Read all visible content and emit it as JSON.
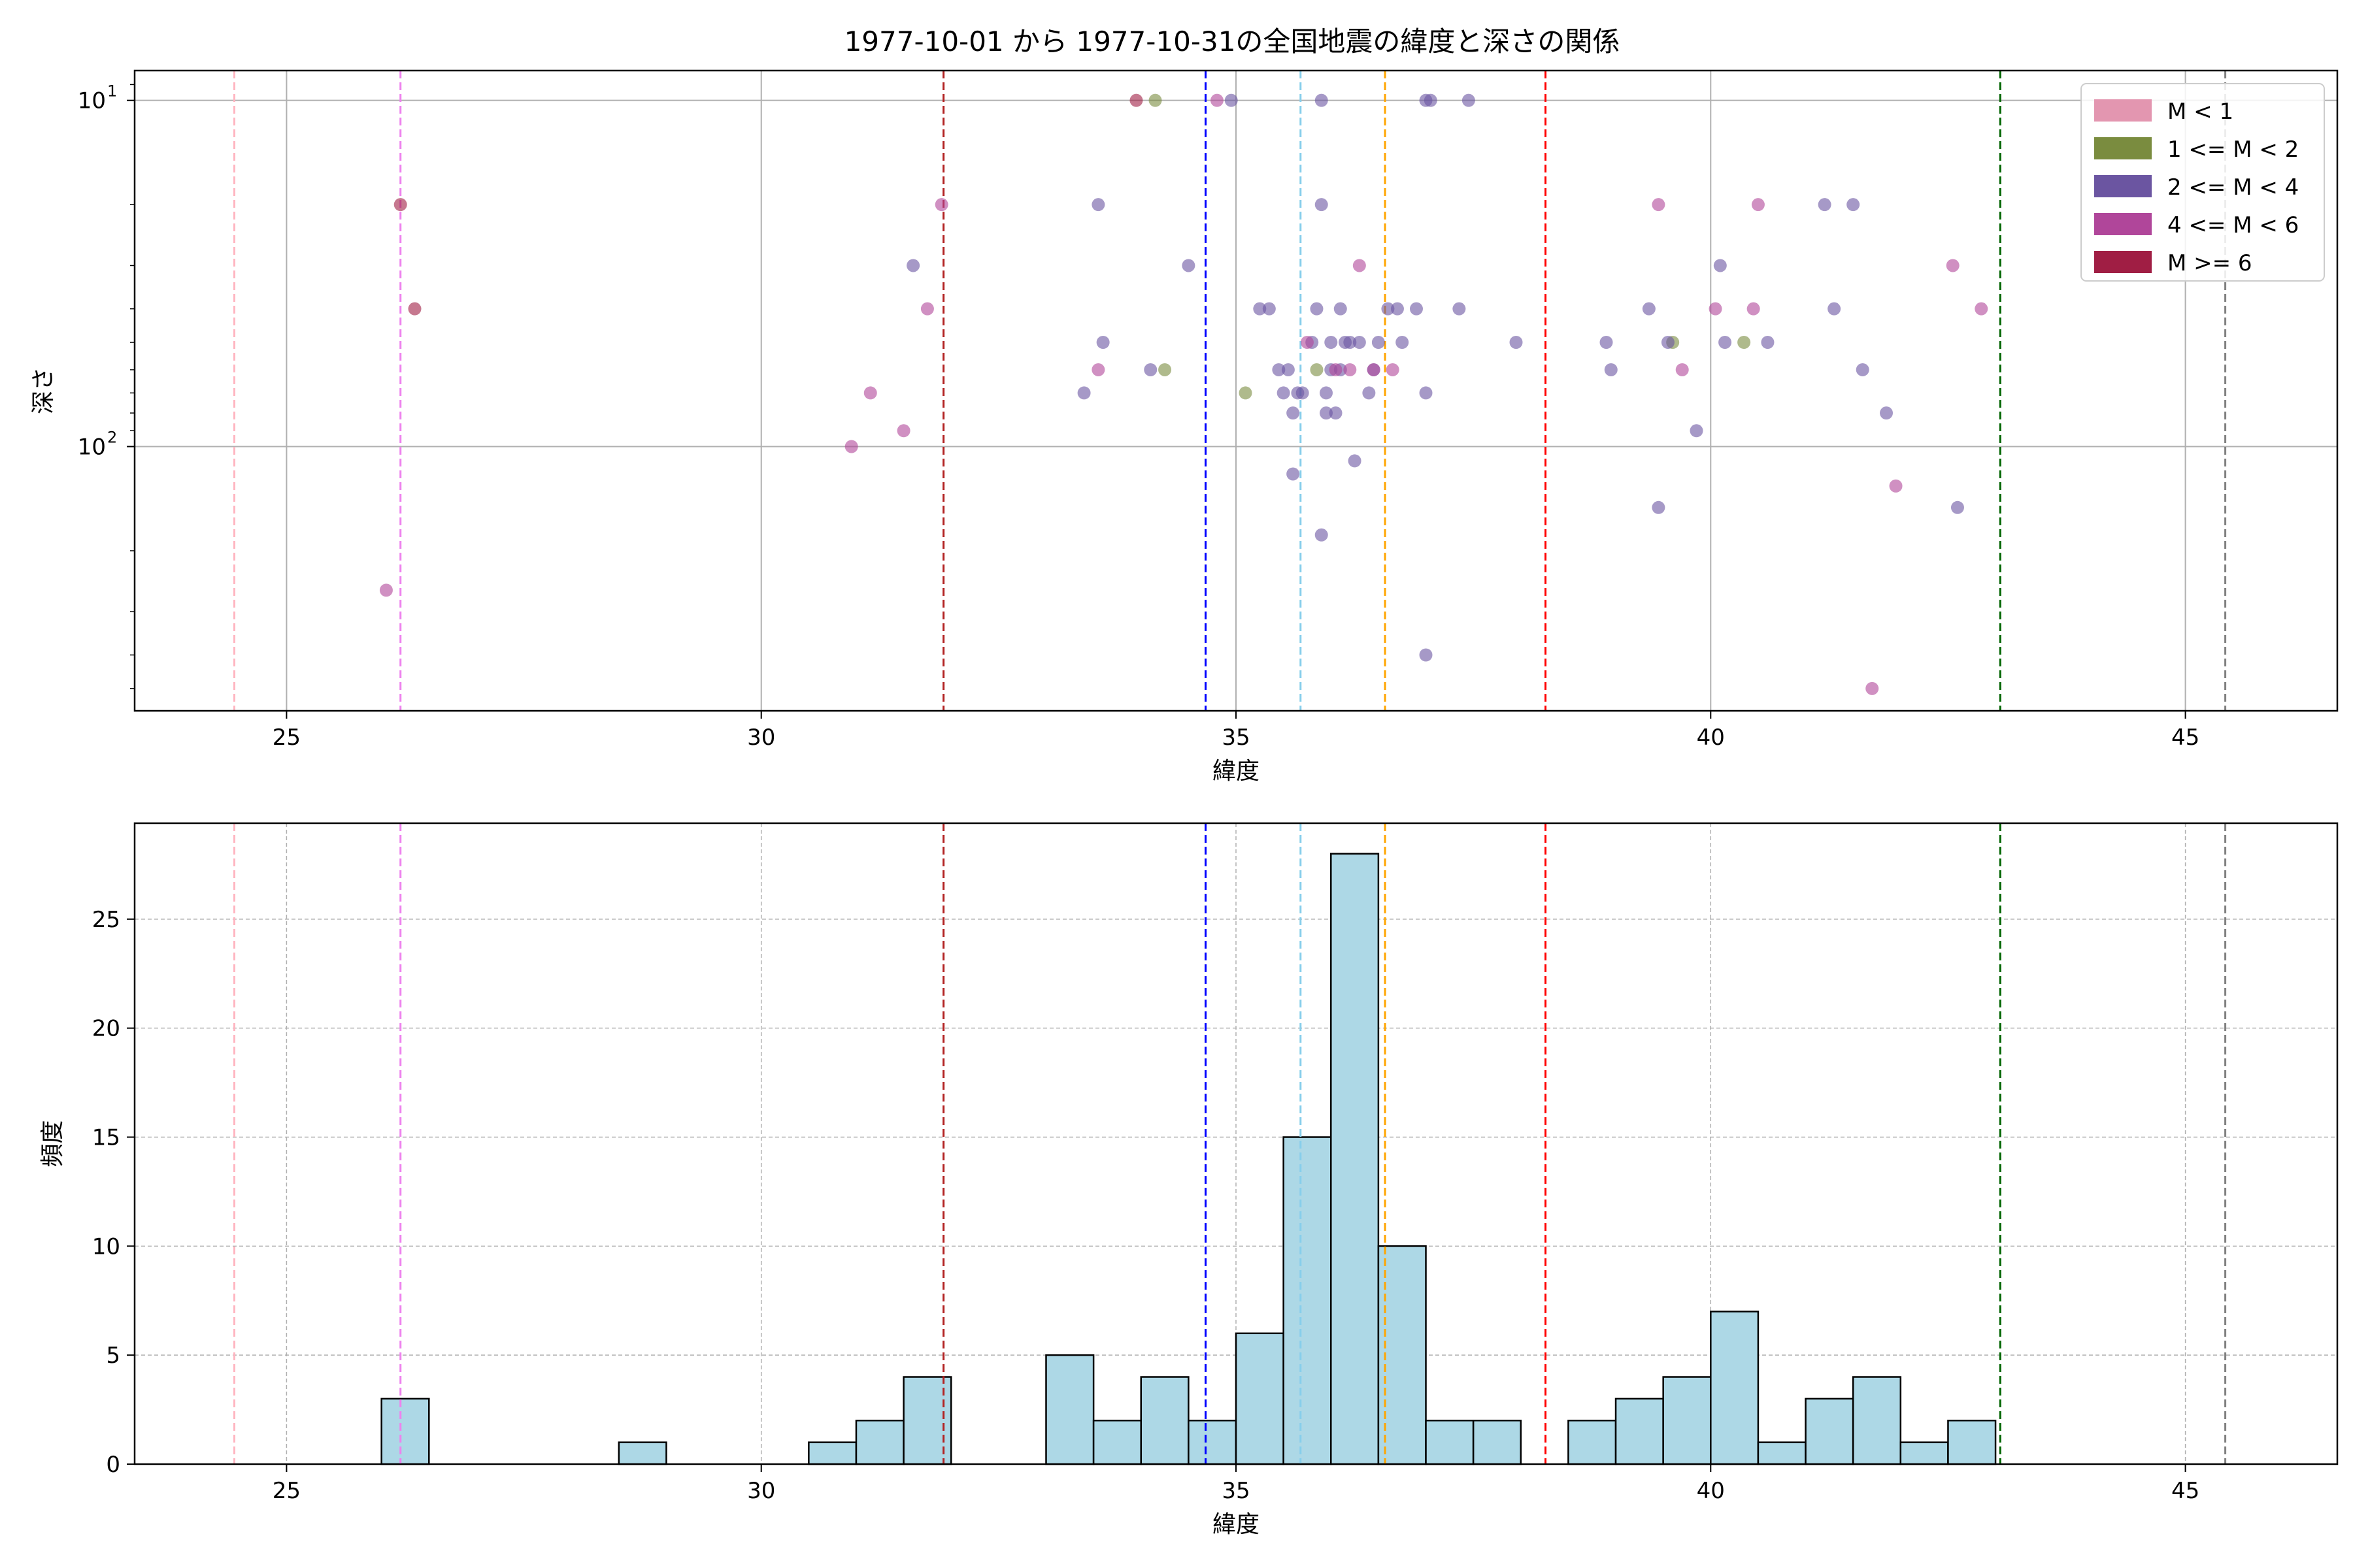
{
  "title": "1977-10-01 から 1977-10-31の全国地震の緯度と深さの関係",
  "chart_data": [
    {
      "type": "scatter",
      "xlabel": "緯度",
      "ylabel": "深さ",
      "xlim": [
        23.4,
        46.6
      ],
      "ylim": [
        580,
        8.2
      ],
      "yscale": "log",
      "y_inverted": true,
      "xticks": [
        25,
        30,
        35,
        40,
        45
      ],
      "yticks": [
        {
          "value": 10,
          "label": "10",
          "exp": "1"
        },
        {
          "value": 100,
          "label": "10",
          "exp": "2"
        }
      ],
      "grid": true,
      "legend": {
        "placement": "top-right",
        "entries": [
          {
            "label": "M < 1",
            "color": "#e396b0"
          },
          {
            "label": "1 <= M < 2",
            "color": "#7a8c3f"
          },
          {
            "label": "2 <= M < 4",
            "color": "#6b55a1"
          },
          {
            "label": "4 <= M < 6",
            "color": "#b0469a"
          },
          {
            "label": "M >= 6",
            "color": "#a01e44"
          }
        ]
      },
      "vlines": [
        {
          "x": 24.45,
          "color": "#ffb6c1"
        },
        {
          "x": 26.2,
          "color": "#ee82ee"
        },
        {
          "x": 31.92,
          "color": "#b22222"
        },
        {
          "x": 34.68,
          "color": "#0000ff"
        },
        {
          "x": 35.68,
          "color": "#87ceeb"
        },
        {
          "x": 36.57,
          "color": "#ffa500"
        },
        {
          "x": 38.26,
          "color": "#ff0000"
        },
        {
          "x": 43.05,
          "color": "#006400"
        },
        {
          "x": 45.42,
          "color": "#808080"
        }
      ],
      "series": [
        {
          "class": "M < 1",
          "color": "#e396b0",
          "points": []
        },
        {
          "class": "1 <= M < 2",
          "color": "#7a8c3f",
          "points": [
            [
              34.15,
              10
            ],
            [
              34.25,
              60
            ],
            [
              35.1,
              70
            ],
            [
              35.85,
              60
            ],
            [
              39.6,
              50
            ],
            [
              40.35,
              50
            ]
          ]
        },
        {
          "class": "2 <= M < 4",
          "color": "#6b55a1",
          "points": [
            [
              33.4,
              70
            ],
            [
              33.55,
              20
            ],
            [
              33.6,
              50
            ],
            [
              34.1,
              60
            ],
            [
              34.5,
              30
            ],
            [
              34.95,
              10
            ],
            [
              31.6,
              30
            ],
            [
              35.25,
              40
            ],
            [
              35.35,
              40
            ],
            [
              35.45,
              60
            ],
            [
              35.5,
              70
            ],
            [
              35.55,
              60
            ],
            [
              35.6,
              120
            ],
            [
              35.6,
              80
            ],
            [
              35.65,
              70
            ],
            [
              35.7,
              70
            ],
            [
              35.8,
              50
            ],
            [
              35.85,
              40
            ],
            [
              35.9,
              20
            ],
            [
              35.9,
              10
            ],
            [
              35.95,
              80
            ],
            [
              35.95,
              70
            ],
            [
              36.0,
              60
            ],
            [
              36.0,
              50
            ],
            [
              36.05,
              80
            ],
            [
              36.1,
              40
            ],
            [
              36.1,
              60
            ],
            [
              36.15,
              50
            ],
            [
              36.2,
              50
            ],
            [
              36.25,
              110
            ],
            [
              36.3,
              50
            ],
            [
              36.4,
              70
            ],
            [
              36.45,
              60
            ],
            [
              36.5,
              50
            ],
            [
              36.6,
              40
            ],
            [
              36.7,
              40
            ],
            [
              36.75,
              50
            ],
            [
              36.9,
              40
            ],
            [
              37.0,
              70
            ],
            [
              37.0,
              10
            ],
            [
              37.05,
              10
            ],
            [
              37.35,
              40
            ],
            [
              37.45,
              10
            ],
            [
              37.0,
              400
            ],
            [
              35.9,
              180
            ],
            [
              37.95,
              50
            ],
            [
              38.9,
              50
            ],
            [
              38.95,
              60
            ],
            [
              39.35,
              40
            ],
            [
              39.45,
              150
            ],
            [
              39.55,
              50
            ],
            [
              39.85,
              90
            ],
            [
              40.1,
              30
            ],
            [
              40.15,
              50
            ],
            [
              40.6,
              50
            ],
            [
              41.2,
              20
            ],
            [
              41.3,
              40
            ],
            [
              41.5,
              20
            ],
            [
              41.6,
              60
            ],
            [
              41.85,
              80
            ],
            [
              42.6,
              150
            ]
          ]
        },
        {
          "class": "4 <= M < 6",
          "color": "#b0469a",
          "points": [
            [
              26.05,
              260
            ],
            [
              30.95,
              100
            ],
            [
              31.15,
              70
            ],
            [
              31.5,
              90
            ],
            [
              31.75,
              40
            ],
            [
              31.9,
              20
            ],
            [
              33.55,
              60
            ],
            [
              34.8,
              10
            ],
            [
              35.75,
              50
            ],
            [
              36.05,
              60
            ],
            [
              36.2,
              60
            ],
            [
              36.3,
              30
            ],
            [
              36.45,
              60
            ],
            [
              36.65,
              60
            ],
            [
              39.45,
              20
            ],
            [
              39.7,
              60
            ],
            [
              40.05,
              40
            ],
            [
              40.45,
              40
            ],
            [
              40.5,
              20
            ],
            [
              41.7,
              500
            ],
            [
              41.95,
              130
            ],
            [
              42.55,
              30
            ],
            [
              42.85,
              40
            ]
          ]
        },
        {
          "class": "M >= 6",
          "color": "#a01e44",
          "points": [
            [
              26.2,
              20
            ],
            [
              26.35,
              40
            ],
            [
              33.95,
              10
            ]
          ]
        }
      ]
    },
    {
      "type": "bar",
      "xlabel": "緯度",
      "ylabel": "頻度",
      "xlim": [
        23.4,
        46.6
      ],
      "ylim": [
        0,
        29.4
      ],
      "xticks": [
        25,
        30,
        35,
        40,
        45
      ],
      "yticks": [
        0,
        5,
        10,
        15,
        20,
        25
      ],
      "grid": true,
      "bar_color": "#add8e6",
      "edge_color": "#000000",
      "bin_width": 0.5,
      "bins": [
        {
          "x0": 26.0,
          "count": 3
        },
        {
          "x0": 28.5,
          "count": 1
        },
        {
          "x0": 30.5,
          "count": 1
        },
        {
          "x0": 31.0,
          "count": 2
        },
        {
          "x0": 31.5,
          "count": 4
        },
        {
          "x0": 33.0,
          "count": 5
        },
        {
          "x0": 33.5,
          "count": 2
        },
        {
          "x0": 34.0,
          "count": 4
        },
        {
          "x0": 34.5,
          "count": 2
        },
        {
          "x0": 35.0,
          "count": 6
        },
        {
          "x0": 35.5,
          "count": 15
        },
        {
          "x0": 36.0,
          "count": 28
        },
        {
          "x0": 36.5,
          "count": 10
        },
        {
          "x0": 37.0,
          "count": 2
        },
        {
          "x0": 37.5,
          "count": 2
        },
        {
          "x0": 38.5,
          "count": 2
        },
        {
          "x0": 39.0,
          "count": 3
        },
        {
          "x0": 39.5,
          "count": 4
        },
        {
          "x0": 40.0,
          "count": 7
        },
        {
          "x0": 40.5,
          "count": 1
        },
        {
          "x0": 41.0,
          "count": 3
        },
        {
          "x0": 41.5,
          "count": 4
        },
        {
          "x0": 42.0,
          "count": 1
        },
        {
          "x0": 42.5,
          "count": 2
        }
      ],
      "vlines_ref": 0
    }
  ]
}
